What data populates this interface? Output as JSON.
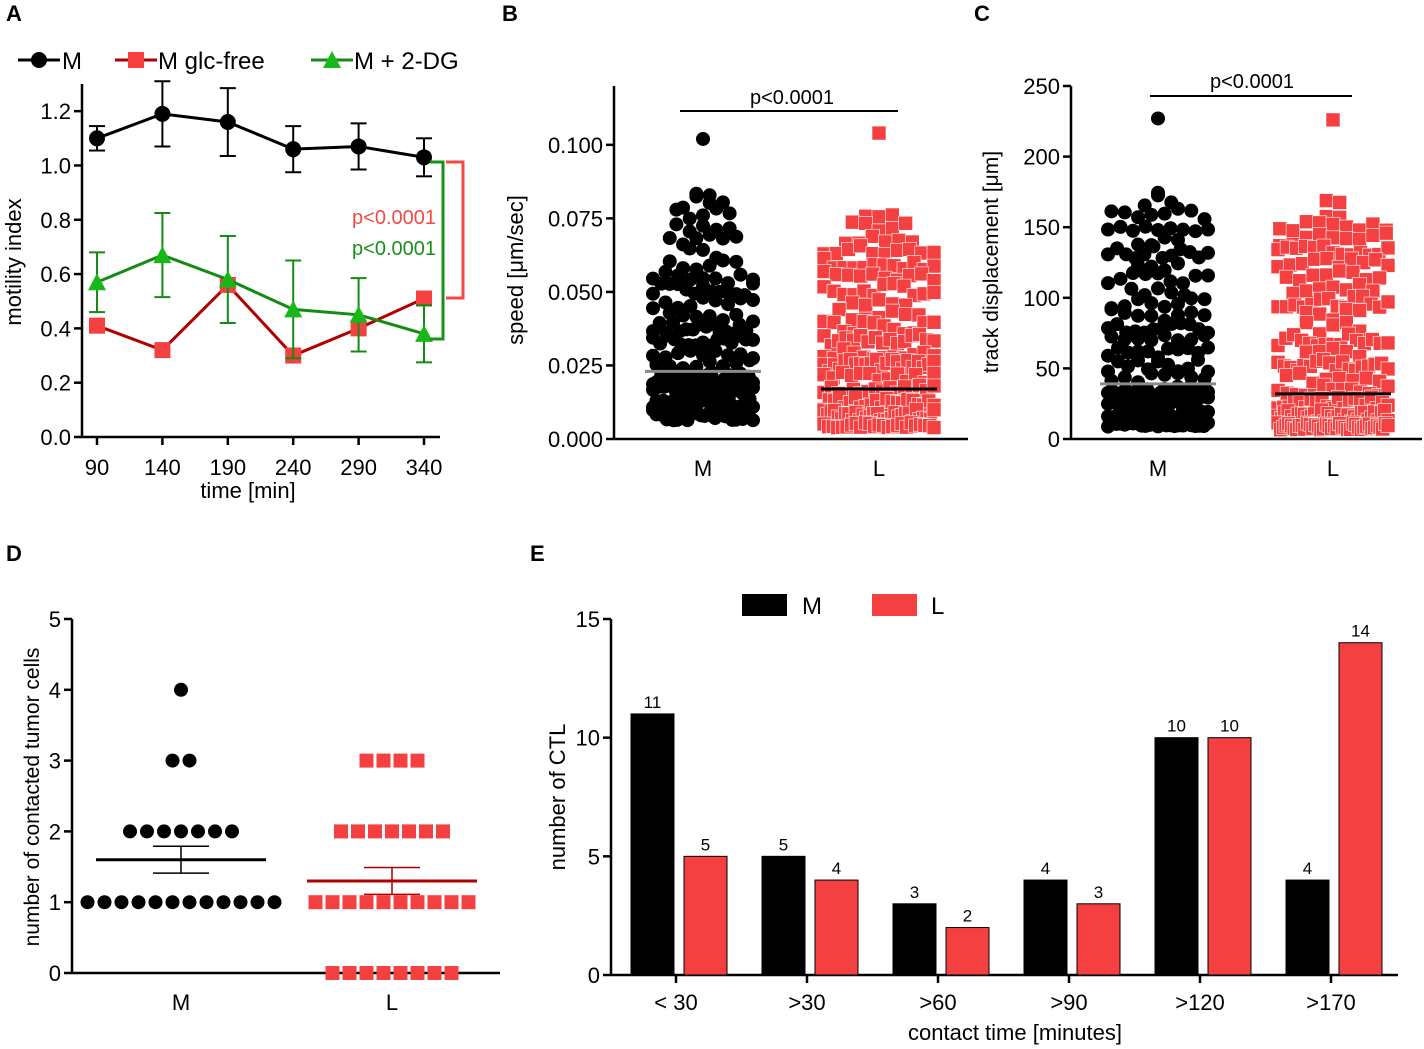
{
  "colors": {
    "black": "#000000",
    "red": "#f44040",
    "darkred": "#b00000",
    "green": "#158a15",
    "brightgreen": "#18b818",
    "gray": "#8a8a8a",
    "redtext": "#f44848",
    "greentext": "#18911a"
  },
  "chart_data": [
    {
      "id": "A",
      "type": "line",
      "panel_letter": "A",
      "xlabel": "time [min]",
      "ylabel": "motility index",
      "x": [
        90,
        140,
        190,
        240,
        290,
        340
      ],
      "x_tick_labels": [
        "90",
        "140",
        "190",
        "240",
        "290",
        "340"
      ],
      "ylim": [
        0,
        1.3
      ],
      "y_ticks": [
        "0.0",
        "0.2",
        "0.4",
        "0.6",
        "0.8",
        "1.0",
        "1.2"
      ],
      "series": [
        {
          "name": "M",
          "marker": "circle",
          "color": "black",
          "values": [
            1.1,
            1.19,
            1.16,
            1.06,
            1.07,
            1.03
          ],
          "errors": [
            0.045,
            0.12,
            0.125,
            0.085,
            0.085,
            0.07
          ]
        },
        {
          "name": "M glc-free",
          "marker": "square",
          "color": "red",
          "values": [
            0.41,
            0.32,
            0.56,
            0.3,
            0.4,
            0.51
          ],
          "errors": [
            0,
            0,
            0,
            0,
            0,
            0
          ]
        },
        {
          "name": "M + 2-DG",
          "marker": "triangle",
          "color": "green",
          "values": [
            0.57,
            0.67,
            0.58,
            0.47,
            0.45,
            0.38
          ],
          "errors": [
            0.11,
            0.155,
            0.16,
            0.18,
            0.135,
            0.105
          ]
        }
      ],
      "annotations": [
        "p<0.0001",
        "p<0.0001"
      ]
    },
    {
      "id": "B",
      "type": "scatter",
      "panel_letter": "B",
      "ylabel": "speed [μm/sec]",
      "categories": [
        "M",
        "L"
      ],
      "ylim": [
        0,
        0.12
      ],
      "y_ticks": [
        "0.000",
        "0.025",
        "0.050",
        "0.075",
        "0.100"
      ],
      "y_tick_values": [
        0,
        0.025,
        0.05,
        0.075,
        0.1
      ],
      "medians": [
        0.023,
        0.017
      ],
      "max_values": [
        0.102,
        0.104
      ],
      "annotation": "p<0.0001"
    },
    {
      "id": "C",
      "type": "scatter",
      "panel_letter": "C",
      "ylabel": "track displacement [μm]",
      "categories": [
        "M",
        "L"
      ],
      "ylim": [
        0,
        250
      ],
      "y_ticks": [
        "0",
        "50",
        "100",
        "150",
        "200",
        "250"
      ],
      "y_tick_values": [
        0,
        50,
        100,
        150,
        200,
        250
      ],
      "medians": [
        39,
        32
      ],
      "max_values": [
        227,
        226
      ],
      "annotation": "p<0.0001"
    },
    {
      "id": "D",
      "type": "scatter",
      "panel_letter": "D",
      "ylabel": "number of contacted tumor cells",
      "categories": [
        "M",
        "L"
      ],
      "ylim": [
        0,
        5
      ],
      "y_ticks": [
        "0",
        "1",
        "2",
        "3",
        "4",
        "5"
      ],
      "series": [
        {
          "name": "M",
          "counts": {
            "1": 12,
            "2": 7,
            "3": 2,
            "4": 1
          },
          "mean": 1.6,
          "sem": 0.19
        },
        {
          "name": "L",
          "counts": {
            "0": 8,
            "1": 10,
            "2": 7,
            "3": 4
          },
          "mean": 1.3,
          "sem": 0.19
        }
      ]
    },
    {
      "id": "E",
      "type": "bar",
      "panel_letter": "E",
      "xlabel": "contact time [minutes]",
      "ylabel": "number of CTL",
      "categories": [
        "< 30",
        ">30",
        ">60",
        ">90",
        ">120",
        ">170"
      ],
      "ylim": [
        0,
        15
      ],
      "y_ticks": [
        "0",
        "5",
        "10",
        "15"
      ],
      "series": [
        {
          "name": "M",
          "values": [
            11,
            5,
            3,
            4,
            10,
            4
          ]
        },
        {
          "name": "L",
          "values": [
            5,
            4,
            2,
            3,
            10,
            14
          ]
        }
      ]
    }
  ]
}
